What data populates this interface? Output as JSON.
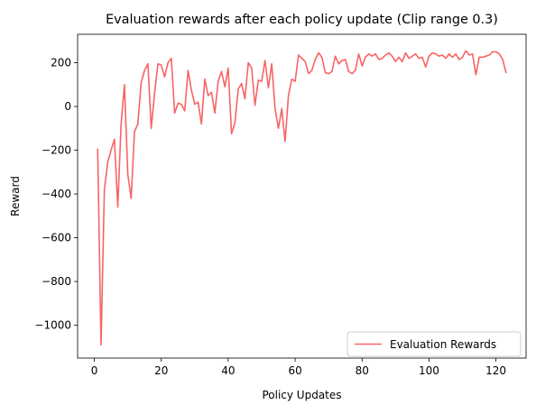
{
  "chart_data": {
    "type": "line",
    "title": "Evaluation rewards after each policy update (Clip range 0.3)",
    "xlabel": "Policy Updates",
    "ylabel": "Reward",
    "xlim": [
      -5,
      129
    ],
    "ylim": [
      -1150,
      330
    ],
    "xticks": [
      0,
      20,
      40,
      60,
      80,
      100,
      120
    ],
    "yticks": [
      -1000,
      -800,
      -600,
      -400,
      -200,
      0,
      200
    ],
    "ytick_labels": [
      "−1000",
      "−800",
      "−600",
      "−400",
      "−200",
      "0",
      "200"
    ],
    "grid": false,
    "legend_position": "lower-right",
    "series": [
      {
        "name": "Evaluation Rewards",
        "color": "#f86464",
        "x": [
          1,
          2,
          3,
          4,
          5,
          6,
          7,
          8,
          9,
          10,
          11,
          12,
          13,
          14,
          15,
          16,
          17,
          18,
          19,
          20,
          21,
          22,
          23,
          24,
          25,
          26,
          27,
          28,
          29,
          30,
          31,
          32,
          33,
          34,
          35,
          36,
          37,
          38,
          39,
          40,
          41,
          42,
          43,
          44,
          45,
          46,
          47,
          48,
          49,
          50,
          51,
          52,
          53,
          54,
          55,
          56,
          57,
          58,
          59,
          60,
          61,
          62,
          63,
          64,
          65,
          66,
          67,
          68,
          69,
          70,
          71,
          72,
          73,
          74,
          75,
          76,
          77,
          78,
          79,
          80,
          81,
          82,
          83,
          84,
          85,
          86,
          87,
          88,
          89,
          90,
          91,
          92,
          93,
          94,
          95,
          96,
          97,
          98,
          99,
          100,
          101,
          102,
          103,
          104,
          105,
          106,
          107,
          108,
          109,
          110,
          111,
          112,
          113,
          114,
          115,
          116,
          117,
          118,
          119,
          120,
          121,
          122,
          123
        ],
        "values": [
          -195,
          -1090,
          -380,
          -255,
          -200,
          -150,
          -460,
          -80,
          100,
          -310,
          -420,
          -115,
          -80,
          110,
          165,
          195,
          -100,
          60,
          195,
          190,
          135,
          200,
          220,
          -30,
          15,
          10,
          -20,
          165,
          75,
          10,
          20,
          -80,
          125,
          50,
          65,
          -30,
          115,
          160,
          90,
          175,
          -125,
          -75,
          80,
          105,
          35,
          200,
          175,
          5,
          120,
          115,
          210,
          85,
          195,
          -10,
          -100,
          -10,
          -160,
          50,
          125,
          115,
          235,
          220,
          205,
          150,
          165,
          215,
          245,
          225,
          155,
          150,
          160,
          230,
          195,
          210,
          215,
          160,
          150,
          165,
          240,
          185,
          225,
          240,
          230,
          240,
          215,
          220,
          235,
          245,
          230,
          205,
          225,
          205,
          245,
          220,
          230,
          240,
          220,
          225,
          180,
          230,
          245,
          240,
          230,
          235,
          220,
          240,
          225,
          240,
          215,
          225,
          255,
          235,
          240,
          145,
          225,
          225,
          230,
          235,
          250,
          250,
          240,
          215,
          155
        ]
      }
    ]
  }
}
